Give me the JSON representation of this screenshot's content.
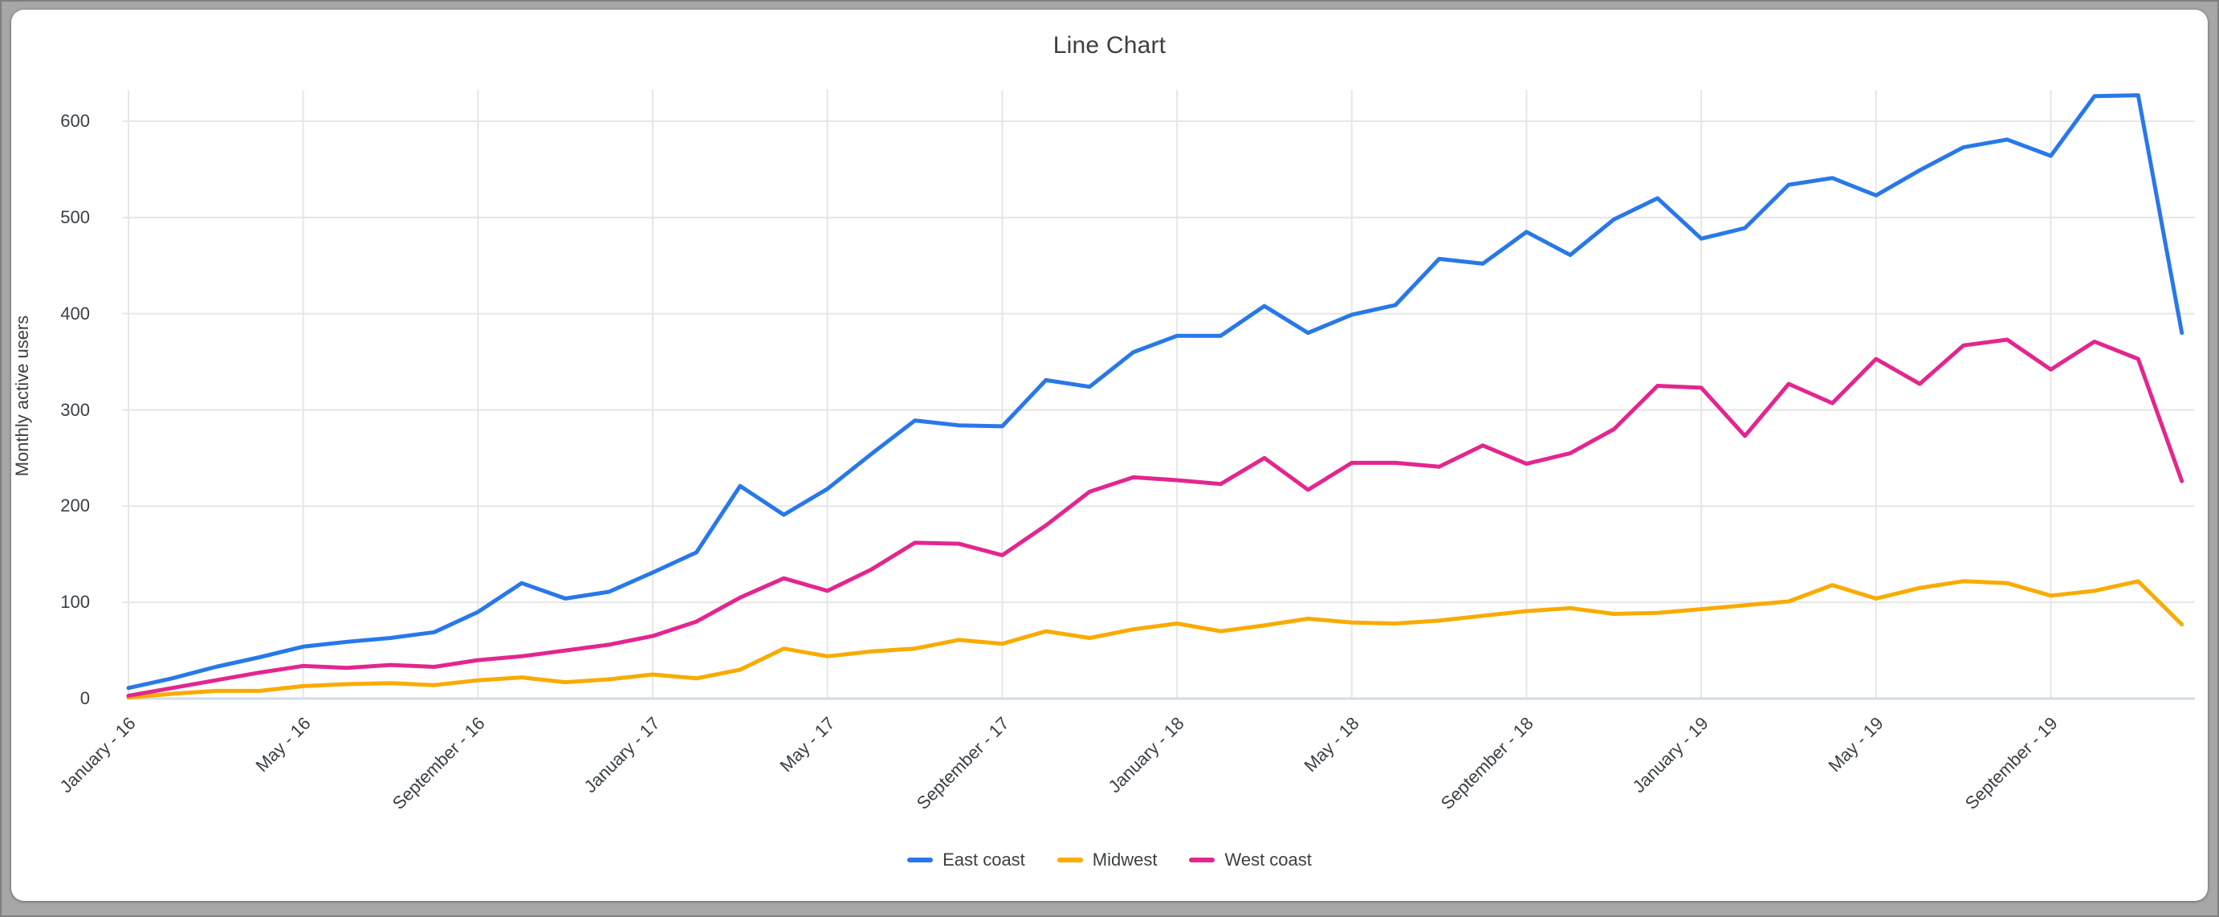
{
  "page": {
    "background_color": "#a7a7a7",
    "card_color": "#ffffff"
  },
  "header": {
    "title": "Line Chart"
  },
  "chart_data": {
    "type": "line",
    "title": "Line Chart",
    "xlabel": "",
    "ylabel": "Monthly active users",
    "ylim": [
      0,
      650
    ],
    "y_ticks": [
      0,
      100,
      200,
      300,
      400,
      500,
      600
    ],
    "grid": true,
    "grid_color": "#e6e6e6",
    "axis_line_color": "#d2dbe8",
    "tick_text_color": "#3a4045",
    "title_text_color": "#3c4043",
    "legend_position": "bottom",
    "n_points": 48,
    "x_range_note": "monthly points, January 2016 through December 2019",
    "x_tick_indices": [
      0,
      4,
      8,
      12,
      16,
      20,
      24,
      28,
      32,
      36,
      40,
      44
    ],
    "x_tick_labels": [
      "January - 16",
      "May - 16",
      "September - 16",
      "January - 17",
      "May - 17",
      "September - 17",
      "January - 18",
      "May - 18",
      "September - 18",
      "January - 19",
      "May - 19",
      "September - 19"
    ],
    "series": [
      {
        "name": "East coast",
        "color": "#2878e9",
        "values": [
          11,
          21,
          33,
          43,
          54,
          59,
          63,
          69,
          90,
          120,
          104,
          111,
          131,
          152,
          221,
          191,
          218,
          254,
          289,
          284,
          283,
          331,
          324,
          360,
          377,
          377,
          408,
          380,
          399,
          409,
          457,
          452,
          485,
          461,
          498,
          520,
          478,
          489,
          534,
          541,
          523,
          549,
          573,
          581,
          564,
          626,
          627,
          380
        ]
      },
      {
        "name": "Midwest",
        "color": "#f9ab00",
        "values": [
          1,
          5,
          8,
          8,
          13,
          15,
          16,
          14,
          19,
          22,
          17,
          20,
          25,
          21,
          30,
          52,
          44,
          49,
          52,
          61,
          57,
          70,
          63,
          72,
          78,
          70,
          76,
          83,
          79,
          78,
          81,
          86,
          91,
          94,
          88,
          89,
          93,
          97,
          101,
          118,
          104,
          115,
          122,
          120,
          107,
          112,
          122,
          77
        ]
      },
      {
        "name": "West coast",
        "color": "#e3268f",
        "values": [
          3,
          11,
          19,
          27,
          34,
          32,
          35,
          33,
          40,
          44,
          50,
          56,
          65,
          80,
          105,
          125,
          112,
          134,
          162,
          161,
          149,
          180,
          215,
          230,
          227,
          223,
          250,
          217,
          245,
          245,
          241,
          263,
          244,
          255,
          280,
          325,
          323,
          273,
          327,
          307,
          353,
          327,
          367,
          373,
          342,
          371,
          353,
          226
        ]
      }
    ]
  }
}
